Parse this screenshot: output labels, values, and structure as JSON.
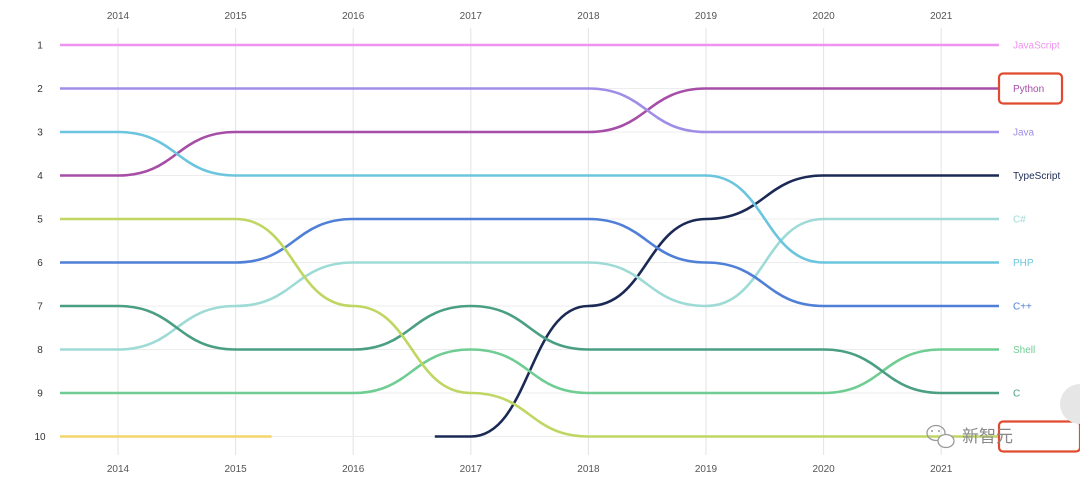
{
  "chart_data": {
    "type": "line",
    "title": "",
    "xlabel": "",
    "ylabel": "",
    "x": [
      "2014",
      "2015",
      "2016",
      "2017",
      "2018",
      "2019",
      "2020",
      "2021"
    ],
    "ranks": [
      "1",
      "2",
      "3",
      "4",
      "5",
      "6",
      "7",
      "8",
      "9",
      "10"
    ],
    "ylim": [
      1,
      10
    ],
    "y_inverted": true,
    "grid": true,
    "series": [
      {
        "name": "JavaScript",
        "color": "#ef93f0",
        "values": [
          1,
          1,
          1,
          1,
          1,
          1,
          1,
          1
        ]
      },
      {
        "name": "Python",
        "color": "#a64ea7",
        "values": [
          4,
          3,
          3,
          3,
          3,
          2,
          2,
          2
        ]
      },
      {
        "name": "Java",
        "color": "#a08de6",
        "values": [
          2,
          2,
          2,
          2,
          2,
          3,
          3,
          3
        ]
      },
      {
        "name": "TypeScript",
        "color": "#1b2a55",
        "values": [
          null,
          null,
          null,
          10,
          7,
          5,
          4,
          4
        ]
      },
      {
        "name": "C#",
        "color": "#9fdbd6",
        "values": [
          8,
          7,
          6,
          6,
          6,
          7,
          5,
          5
        ]
      },
      {
        "name": "PHP",
        "color": "#6cc5de",
        "values": [
          3,
          4,
          4,
          4,
          4,
          4,
          6,
          6
        ]
      },
      {
        "name": "C++",
        "color": "#4f7fd6",
        "values": [
          6,
          6,
          5,
          5,
          5,
          6,
          7,
          7
        ]
      },
      {
        "name": "Shell",
        "color": "#6fcc92",
        "values": [
          9,
          9,
          9,
          8,
          9,
          9,
          9,
          8
        ]
      },
      {
        "name": "C",
        "color": "#4a9e84",
        "values": [
          7,
          8,
          8,
          7,
          8,
          8,
          8,
          9
        ]
      },
      {
        "name": "",
        "color": "#bfd663",
        "values": [
          5,
          5,
          7,
          9,
          10,
          10,
          10,
          10
        ]
      },
      {
        "name": "",
        "color": "#f2d66b",
        "values": [
          10,
          10,
          null,
          null,
          null,
          null,
          null,
          null
        ]
      }
    ],
    "highlighted": [
      "Python"
    ]
  },
  "watermark": {
    "text": "新智元"
  }
}
